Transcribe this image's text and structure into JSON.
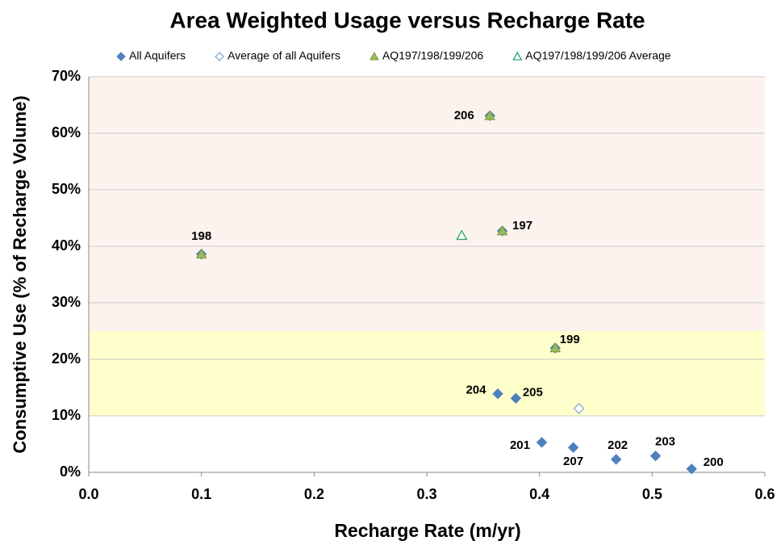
{
  "chart_data": {
    "type": "scatter",
    "title": "Area Weighted Usage versus Recharge Rate",
    "x_label": "Recharge Rate (m/yr)",
    "y_label": "Consumptive Use (% of Recharge Volume)",
    "xlim": [
      0,
      0.6
    ],
    "xticks": [
      {
        "value": 0,
        "label": "0.0"
      },
      0.1,
      0.2,
      0.3,
      0.4,
      0.5,
      0.6
    ],
    "ylim": [
      0,
      70
    ],
    "yticks": [
      {
        "value": 0,
        "label": "0%"
      },
      {
        "value": 10,
        "label": "10%"
      },
      {
        "value": 20,
        "label": "20%"
      },
      {
        "value": 30,
        "label": "30%"
      },
      {
        "value": 40,
        "label": "40%"
      },
      {
        "value": 50,
        "label": "50%"
      },
      {
        "value": 60,
        "label": "60%"
      },
      {
        "value": 70,
        "label": "70%"
      }
    ],
    "grid": true,
    "legend": "top",
    "bands": [
      {
        "from": 10,
        "to": 25,
        "color": "#ffffcc"
      },
      {
        "from": 25,
        "to": 70,
        "color": "#fdf3ee"
      }
    ],
    "series": [
      {
        "name": "All Aquifers",
        "marker": "diamond",
        "filled": true,
        "color": "#4f81bd",
        "x": [
          0.1,
          0.356,
          0.367,
          0.414,
          0.363,
          0.379,
          0.402,
          0.43,
          0.468,
          0.503,
          0.535
        ],
        "values": [
          38.6,
          63.1,
          42.7,
          22.0,
          13.9,
          13.1,
          5.3,
          4.4,
          2.3,
          2.9,
          0.6
        ],
        "labels": [
          "198",
          "206",
          "197",
          "199",
          "204",
          "205",
          "201",
          "207",
          "202",
          "203",
          "200"
        ]
      },
      {
        "name": "Average of all Aquifers",
        "marker": "diamond",
        "filled": false,
        "color": "#8ea9c8",
        "x": [
          0.435
        ],
        "values": [
          11.3
        ]
      },
      {
        "name": "AQ197/198/199/206",
        "marker": "triangle",
        "filled": true,
        "color": "#9bbb59",
        "x": [
          0.1,
          0.356,
          0.367,
          0.414
        ],
        "values": [
          38.6,
          63.1,
          42.7,
          22.0
        ]
      },
      {
        "name": "AQ197/198/199/206 Average",
        "marker": "triangle",
        "filled": false,
        "color": "#2ea36a",
        "x": [
          0.331
        ],
        "values": [
          41.9
        ]
      }
    ]
  }
}
